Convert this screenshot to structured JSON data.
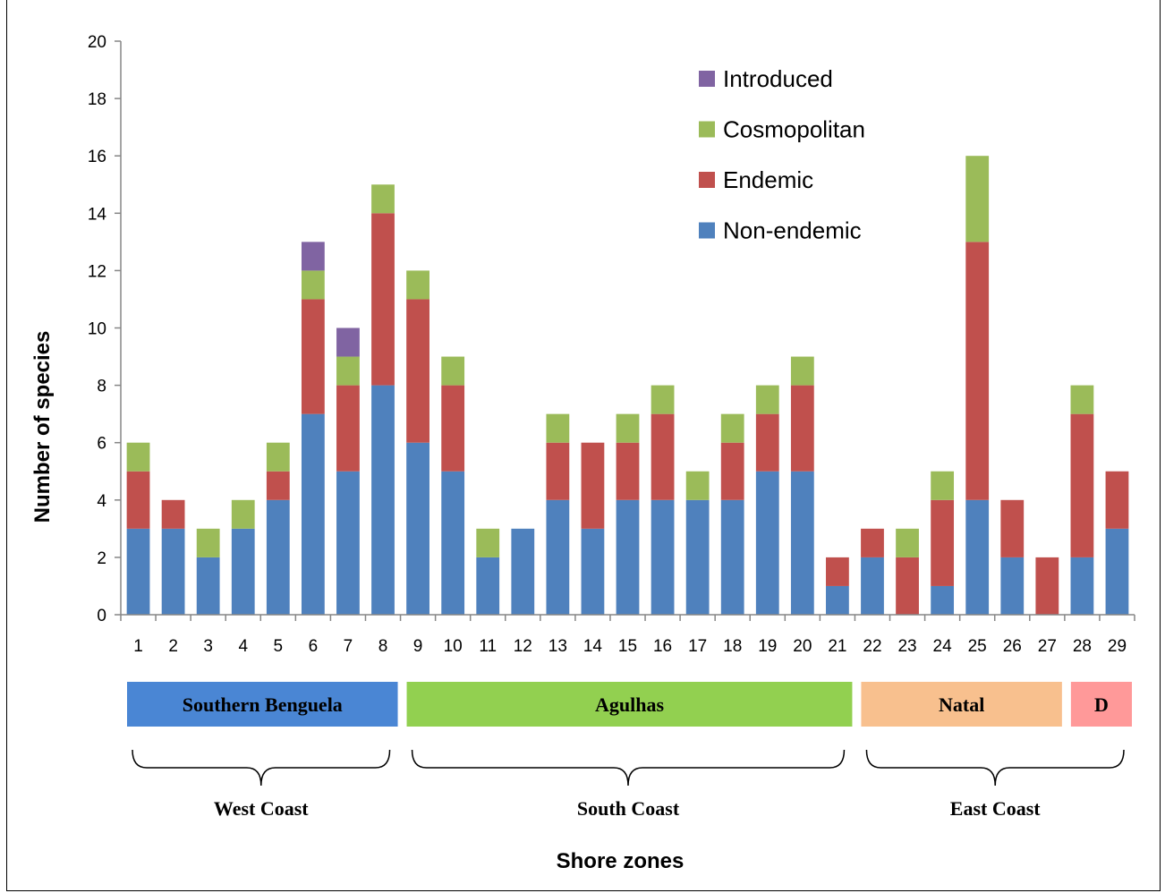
{
  "chart_data": {
    "type": "bar",
    "stacked": true,
    "ylabel": "Number of species",
    "xlabel": "Shore zones",
    "ylim": [
      0,
      20
    ],
    "yticks": [
      0,
      2,
      4,
      6,
      8,
      10,
      12,
      14,
      16,
      18,
      20
    ],
    "grid": false,
    "legend_position": "top-right",
    "categories": [
      "1",
      "2",
      "3",
      "4",
      "5",
      "6",
      "7",
      "8",
      "9",
      "10",
      "11",
      "12",
      "13",
      "14",
      "15",
      "16",
      "17",
      "18",
      "19",
      "20",
      "21",
      "22",
      "23",
      "24",
      "25",
      "26",
      "27",
      "28",
      "29"
    ],
    "series": [
      {
        "name": "Non-endemic",
        "color": "#4F81BD",
        "values": [
          3,
          3,
          2,
          3,
          4,
          7,
          5,
          8,
          6,
          5,
          2,
          3,
          4,
          3,
          4,
          4,
          4,
          4,
          5,
          5,
          1,
          2,
          0,
          1,
          4,
          2,
          0,
          2,
          3
        ]
      },
      {
        "name": "Endemic",
        "color": "#C0504D",
        "values": [
          2,
          1,
          0,
          0,
          1,
          4,
          3,
          6,
          5,
          3,
          0,
          0,
          2,
          3,
          2,
          3,
          0,
          2,
          2,
          3,
          1,
          1,
          2,
          3,
          9,
          2,
          2,
          5,
          2
        ]
      },
      {
        "name": "Cosmopolitan",
        "color": "#9BBB59",
        "values": [
          1,
          0,
          1,
          1,
          1,
          1,
          1,
          1,
          1,
          1,
          1,
          0,
          1,
          0,
          1,
          1,
          1,
          1,
          1,
          1,
          0,
          0,
          1,
          1,
          3,
          0,
          0,
          1,
          0
        ]
      },
      {
        "name": "Introduced",
        "color": "#8064A2",
        "values": [
          0,
          0,
          0,
          0,
          0,
          1,
          1,
          0,
          0,
          0,
          0,
          0,
          0,
          0,
          0,
          0,
          0,
          0,
          0,
          0,
          0,
          0,
          0,
          0,
          0,
          0,
          0,
          0,
          0
        ]
      }
    ],
    "legend_order": [
      "Introduced",
      "Cosmopolitan",
      "Endemic",
      "Non-endemic"
    ],
    "regions": [
      {
        "label": "Southern Benguela",
        "from": 1,
        "to": 8,
        "color": "#4A86D4"
      },
      {
        "label": "Agulhas",
        "from": 9,
        "to": 21,
        "color": "#92D050"
      },
      {
        "label": "Natal",
        "from": 22,
        "to": 27,
        "color": "#F8C08E"
      },
      {
        "label": "D",
        "from": 28,
        "to": 29,
        "color": "#FF9999"
      }
    ],
    "coasts": [
      {
        "label": "West Coast",
        "from": 1,
        "to": 8
      },
      {
        "label": "South Coast",
        "from": 9,
        "to": 21
      },
      {
        "label": "East Coast",
        "from": 22,
        "to": 29
      }
    ]
  }
}
